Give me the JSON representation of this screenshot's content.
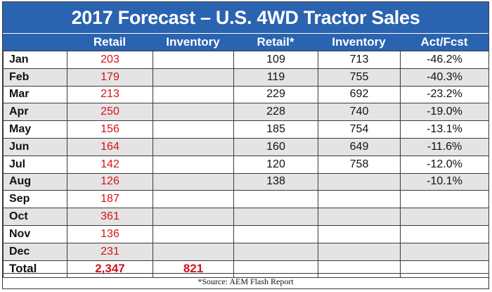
{
  "chart_data": {
    "type": "table",
    "title": "2017 Forecast – U.S. 4WD Tractor Sales",
    "columns": [
      "",
      "Retail",
      "Inventory",
      "Retail*",
      "Inventory",
      "Act/Fcst"
    ],
    "rows": [
      {
        "month": "Jan",
        "retail": "203",
        "inventory": "",
        "retail_actual": "109",
        "inventory_actual": "713",
        "act_fcst": "-46.2%"
      },
      {
        "month": "Feb",
        "retail": "179",
        "inventory": "",
        "retail_actual": "119",
        "inventory_actual": "755",
        "act_fcst": "-40.3%"
      },
      {
        "month": "Mar",
        "retail": "213",
        "inventory": "",
        "retail_actual": "229",
        "inventory_actual": "692",
        "act_fcst": "-23.2%"
      },
      {
        "month": "Apr",
        "retail": "250",
        "inventory": "",
        "retail_actual": "228",
        "inventory_actual": "740",
        "act_fcst": "-19.0%"
      },
      {
        "month": "May",
        "retail": "156",
        "inventory": "",
        "retail_actual": "185",
        "inventory_actual": "754",
        "act_fcst": "-13.1%"
      },
      {
        "month": "Jun",
        "retail": "164",
        "inventory": "",
        "retail_actual": "160",
        "inventory_actual": "649",
        "act_fcst": "-11.6%"
      },
      {
        "month": "Jul",
        "retail": "142",
        "inventory": "",
        "retail_actual": "120",
        "inventory_actual": "758",
        "act_fcst": "-12.0%"
      },
      {
        "month": "Aug",
        "retail": "126",
        "inventory": "",
        "retail_actual": "138",
        "inventory_actual": "",
        "act_fcst": "-10.1%"
      },
      {
        "month": "Sep",
        "retail": "187",
        "inventory": "",
        "retail_actual": "",
        "inventory_actual": "",
        "act_fcst": ""
      },
      {
        "month": "Oct",
        "retail": "361",
        "inventory": "",
        "retail_actual": "",
        "inventory_actual": "",
        "act_fcst": ""
      },
      {
        "month": "Nov",
        "retail": "136",
        "inventory": "",
        "retail_actual": "",
        "inventory_actual": "",
        "act_fcst": ""
      },
      {
        "month": "Dec",
        "retail": "231",
        "inventory": "",
        "retail_actual": "",
        "inventory_actual": "",
        "act_fcst": ""
      }
    ],
    "total": {
      "label": "Total",
      "retail": "2,347",
      "inventory": "821",
      "retail_actual": "",
      "inventory_actual": "",
      "act_fcst": ""
    },
    "source": "*Source:  AEM Flash Report",
    "colors": {
      "header": "#2a63b0",
      "forecast_text": "#d4121b",
      "shade": "#e4e4e4"
    }
  }
}
